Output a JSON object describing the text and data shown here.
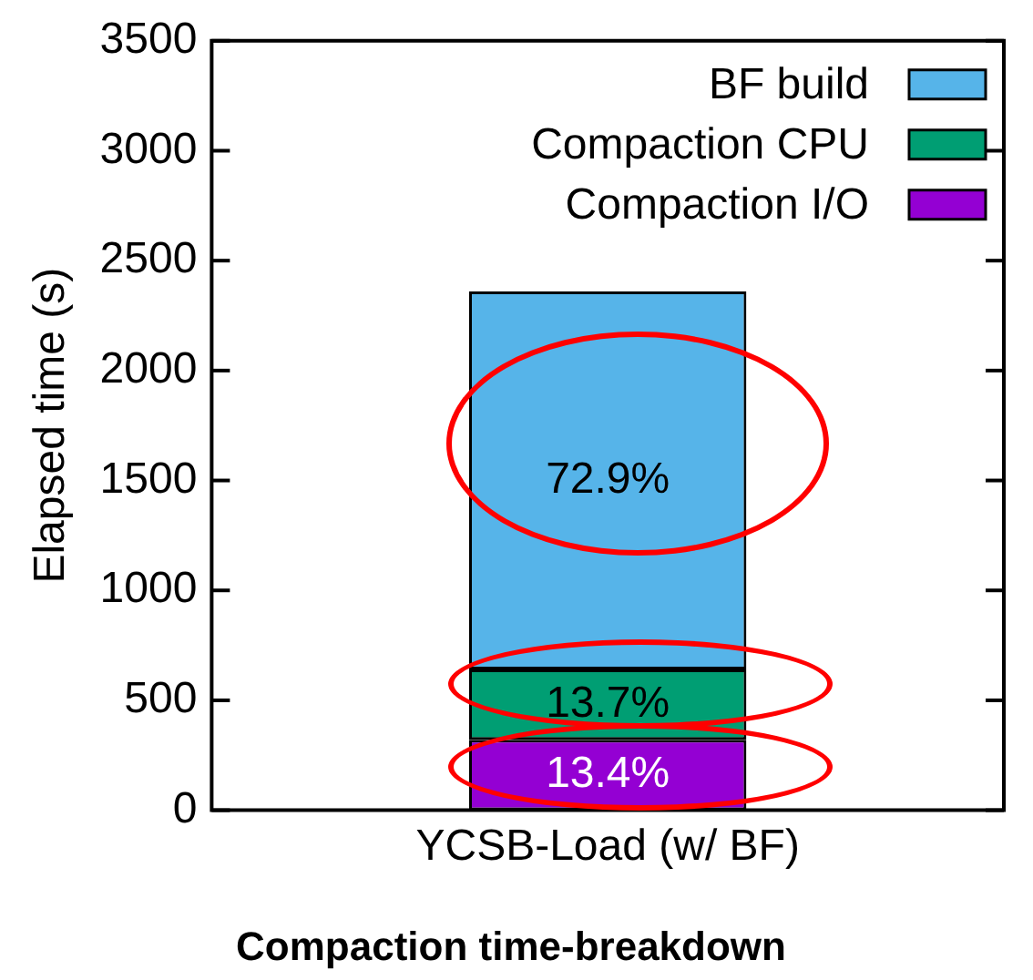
{
  "chart_data": {
    "type": "bar",
    "stacked": true,
    "title": "Compaction time-breakdown",
    "ylabel": "Elapsed time (s)",
    "categories": [
      "YCSB-Load (w/ BF)"
    ],
    "series": [
      {
        "name": "Compaction I/O",
        "color": "#9400d3",
        "values": [
          320
        ]
      },
      {
        "name": "Compaction CPU",
        "color": "#009e73",
        "values": [
          320
        ]
      },
      {
        "name": "BF build",
        "color": "#56b4e9",
        "values": [
          1720
        ]
      }
    ],
    "annotations": [
      "13.4%",
      "13.7%",
      "72.9%"
    ],
    "ylim": [
      0,
      3500
    ],
    "yticks": [
      0,
      500,
      1000,
      1500,
      2000,
      2500,
      3000,
      3500
    ],
    "grid": false,
    "legend": "top right"
  }
}
